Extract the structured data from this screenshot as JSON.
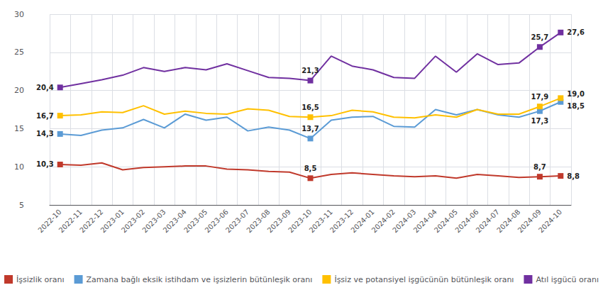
{
  "chart_data": {
    "type": "line",
    "categories": [
      "2022-10",
      "2022-11",
      "2022-12",
      "2023-01",
      "2023-02",
      "2023-03",
      "2023-04",
      "2023-05",
      "2023-06",
      "2023-07",
      "2023-08",
      "2023-09",
      "2023-10",
      "2023-11",
      "2023-12",
      "2024-01",
      "2024-02",
      "2024-03",
      "2024-04",
      "2024-05",
      "2024-06",
      "2024-07",
      "2024-08",
      "2024-09",
      "2024-10"
    ],
    "series": [
      {
        "name": "İşsizlik oranı",
        "color": "#c0392b",
        "values": [
          10.3,
          10.2,
          10.5,
          9.6,
          9.9,
          10.0,
          10.1,
          10.1,
          9.7,
          9.6,
          9.4,
          9.3,
          8.5,
          9.0,
          9.2,
          9.0,
          8.8,
          8.7,
          8.8,
          8.5,
          9.0,
          8.8,
          8.6,
          8.7,
          8.8
        ],
        "value_labels": [
          "10,3",
          null,
          null,
          null,
          null,
          null,
          null,
          null,
          null,
          null,
          null,
          null,
          "8,5",
          null,
          null,
          null,
          null,
          null,
          null,
          null,
          null,
          null,
          null,
          "8,7",
          "8,8"
        ]
      },
      {
        "name": "Zamana bağlı eksik istihdam ve işsizlerin bütünleşik oranı",
        "color": "#5b9bd5",
        "values": [
          14.3,
          14.1,
          14.8,
          15.1,
          16.2,
          15.1,
          16.9,
          16.1,
          16.5,
          14.7,
          15.2,
          14.8,
          13.7,
          16.1,
          16.5,
          16.6,
          15.3,
          15.2,
          17.5,
          16.8,
          17.5,
          16.8,
          16.5,
          17.3,
          18.5
        ],
        "value_labels": [
          "14,3",
          null,
          null,
          null,
          null,
          null,
          null,
          null,
          null,
          null,
          null,
          null,
          "13,7",
          null,
          null,
          null,
          null,
          null,
          null,
          null,
          null,
          null,
          null,
          "17,3",
          "18,5"
        ]
      },
      {
        "name": "İşsiz ve potansiyel işgücünün bütünleşik oranı",
        "color": "#ffc000",
        "values": [
          16.7,
          16.8,
          17.2,
          17.1,
          18.0,
          16.9,
          17.3,
          17.0,
          16.9,
          17.6,
          17.4,
          16.6,
          16.5,
          16.7,
          17.4,
          17.2,
          16.5,
          16.4,
          16.8,
          16.5,
          17.5,
          16.9,
          16.9,
          17.9,
          19.0
        ],
        "value_labels": [
          "16,7",
          null,
          null,
          null,
          null,
          null,
          null,
          null,
          null,
          null,
          null,
          null,
          "16,5",
          null,
          null,
          null,
          null,
          null,
          null,
          null,
          null,
          null,
          null,
          "17,9",
          "19,0"
        ]
      },
      {
        "name": "Atıl işgücü oranı",
        "color": "#7030a0",
        "values": [
          20.4,
          20.9,
          21.4,
          22.0,
          23.0,
          22.5,
          23.0,
          22.7,
          23.5,
          22.6,
          21.7,
          21.6,
          21.3,
          24.5,
          23.2,
          22.7,
          21.7,
          21.6,
          24.5,
          22.4,
          24.8,
          23.4,
          23.6,
          25.7,
          27.6
        ],
        "value_labels": [
          "20,4",
          null,
          null,
          null,
          null,
          null,
          null,
          null,
          null,
          null,
          null,
          null,
          "21,3",
          null,
          null,
          null,
          null,
          null,
          null,
          null,
          null,
          null,
          null,
          "25,7",
          "27,6"
        ]
      }
    ],
    "marker": "square",
    "ylim": [
      5,
      30
    ],
    "yticks": [
      5,
      10,
      15,
      20,
      25,
      30
    ],
    "grid": true,
    "legend": "bottom"
  }
}
